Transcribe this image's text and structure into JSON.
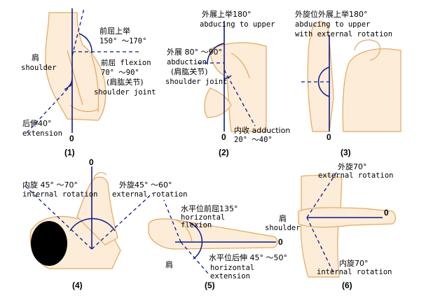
{
  "panels": [
    {
      "number": "(1)",
      "labels": {
        "flexion_up": "前屈上举",
        "flexion_up_range": "150° ～170°",
        "shoulder_cn": "肩",
        "shoulder_en": "shoulder",
        "flexion": "前屈 flexion",
        "flexion_range": "70° ～90°",
        "joint_cn": "(肩肱关节)",
        "joint_en": "shoulder joint",
        "extension_cn": "后伸40°",
        "extension_en": "extension",
        "zero": "0"
      }
    },
    {
      "number": "(2)",
      "labels": {
        "abduct_up_cn": "外展上举180°",
        "abduct_up_en": "abducing to upper",
        "abduction_cn": "外展 80° ～90°",
        "abduction_en": "abduction",
        "joint_cn": "(肩肱关节)",
        "joint_en": "shoulder joint",
        "adduction": "内收 adduction",
        "adduction_range": "20° ～40°",
        "zero": "0"
      }
    },
    {
      "number": "(3)",
      "labels": {
        "title_cn": "外旋位外展上举180°",
        "title_en1": "abducing to upper",
        "title_en2": "with external rotation",
        "zero": "0"
      }
    },
    {
      "number": "(4)",
      "labels": {
        "internal_cn": "内旋 45° ～70°",
        "internal_en": "internal rotation",
        "external_cn": "外旋45° ～60°",
        "external_en": "external rotation",
        "zero": "0"
      }
    },
    {
      "number": "(5)",
      "labels": {
        "hflex_cn": "水平位前屈135°",
        "hflex_en1": "horizontal",
        "hflex_en2": "flexion",
        "shoulder_cn": "肩",
        "hext_cn": "水平位后伸 45° ～50°",
        "hext_en1": "horizontal",
        "hext_en2": "extension",
        "zero": "0"
      }
    },
    {
      "number": "(6)",
      "labels": {
        "ext_cn": "外旋70°",
        "ext_en": "external rotation",
        "shoulder_cn": "肩",
        "shoulder_en": "shoulder",
        "int_cn": "内旋70°",
        "int_en": "internal rotation",
        "zero": "0"
      }
    }
  ],
  "colors": {
    "axis": "#0a1a8a",
    "skin_fill": "#fdecd8",
    "skin_outline": "#e2a860",
    "hair": "#000000"
  }
}
